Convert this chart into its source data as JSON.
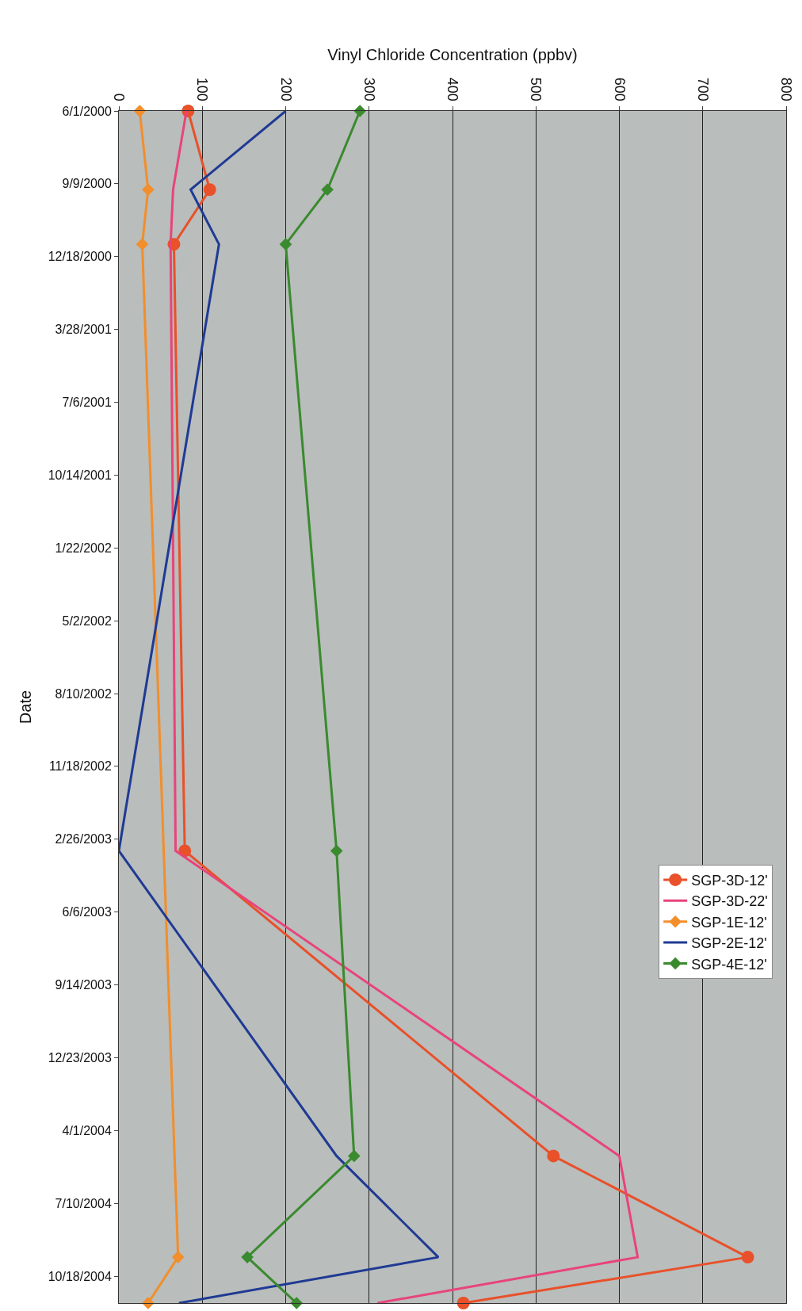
{
  "chart_data": {
    "type": "line",
    "orientation": "horizontal",
    "xlabel": "Vinyl Chloride Concentration (ppbv)",
    "ylabel": "Date",
    "x": [
      "2000-06-01",
      "2000-09-17",
      "2000-12-01",
      "2003-03-14",
      "2004-05-06",
      "2004-09-22",
      "2004-11-24"
    ],
    "series": [
      {
        "name": "SGP-3D-12'",
        "color": "#e8512a",
        "marker": "circle",
        "values": [
          83,
          109,
          66,
          79,
          521,
          754,
          413
        ]
      },
      {
        "name": "SGP-3D-22'",
        "color": "#e8447a",
        "marker": "none",
        "values": [
          81,
          65,
          62,
          68,
          600,
          622,
          310
        ]
      },
      {
        "name": "SGP-1E-12'",
        "color": "#f28e2b",
        "marker": "diamond",
        "x": [
          "2000-06-01",
          "2000-09-17",
          "2000-12-01",
          "2004-09-22",
          "2004-11-24"
        ],
        "values": [
          25,
          35,
          28,
          71,
          35
        ]
      },
      {
        "name": "SGP-2E-12'",
        "color": "#1f3a93",
        "marker": "none",
        "values": [
          200,
          86,
          120,
          0,
          261,
          383,
          72
        ]
      },
      {
        "name": "SGP-4E-12'",
        "color": "#3a8a2e",
        "marker": "diamond",
        "values": [
          289,
          250,
          200,
          261,
          282,
          154,
          213
        ]
      }
    ],
    "ylim": [
      "2004-11-24",
      "2000-06-01"
    ],
    "yticks": [
      {
        "value": "2000-06-01",
        "label": "6/1/2000"
      },
      {
        "value": "2000-09-09",
        "label": "9/9/2000"
      },
      {
        "value": "2000-12-18",
        "label": "12/18/2000"
      },
      {
        "value": "2001-03-28",
        "label": "3/28/2001"
      },
      {
        "value": "2001-07-06",
        "label": "7/6/2001"
      },
      {
        "value": "2001-10-14",
        "label": "10/14/2001"
      },
      {
        "value": "2002-01-22",
        "label": "1/22/2002"
      },
      {
        "value": "2002-05-02",
        "label": "5/2/2002"
      },
      {
        "value": "2002-08-10",
        "label": "8/10/2002"
      },
      {
        "value": "2002-11-18",
        "label": "11/18/2002"
      },
      {
        "value": "2003-02-26",
        "label": "2/26/2003"
      },
      {
        "value": "2003-06-06",
        "label": "6/6/2003"
      },
      {
        "value": "2003-09-14",
        "label": "9/14/2003"
      },
      {
        "value": "2003-12-23",
        "label": "12/23/2003"
      },
      {
        "value": "2004-04-01",
        "label": "4/1/2004"
      },
      {
        "value": "2004-07-10",
        "label": "7/10/2004"
      },
      {
        "value": "2004-10-18",
        "label": "10/18/2004"
      }
    ],
    "xlim": [
      0,
      800
    ],
    "xticks": [
      0,
      100,
      200,
      300,
      400,
      500,
      600,
      700,
      800
    ],
    "grid": "x",
    "legend": "right",
    "line_style": "solid"
  }
}
